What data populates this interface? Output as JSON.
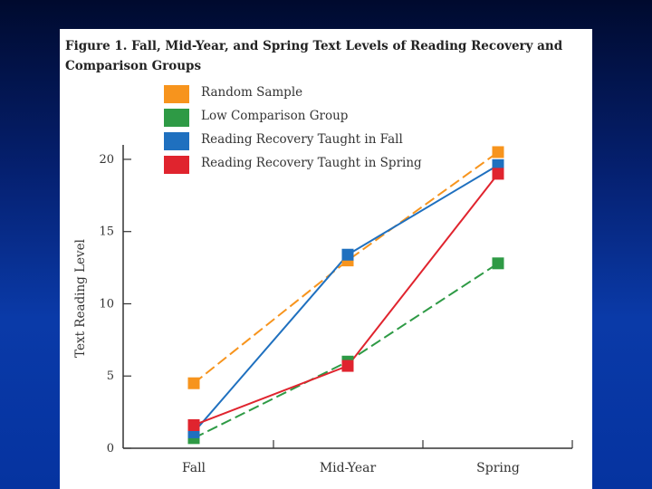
{
  "figure": {
    "title_line1": "Figure 1.  Fall, Mid-Year, and Spring Text Levels of Reading Recovery and",
    "title_line2": "Comparison Groups"
  },
  "legend": [
    {
      "label": "Random Sample",
      "color": "#f7941d"
    },
    {
      "label": "Low Comparison Group",
      "color": "#2e9a45"
    },
    {
      "label": "Reading Recovery Taught in Fall",
      "color": "#1f70bf"
    },
    {
      "label": "Reading Recovery Taught in Spring",
      "color": "#e0242e"
    }
  ],
  "chart_data": {
    "type": "line",
    "title": "Fall, Mid-Year, and Spring Text Levels of Reading Recovery and Comparison Groups",
    "categories": [
      "Fall",
      "Mid-Year",
      "Spring"
    ],
    "ylabel": "Text Reading Level",
    "xlabel": "",
    "ylim": [
      0,
      21
    ],
    "yticks": [
      0,
      5,
      10,
      15,
      20
    ],
    "grid": false,
    "series": [
      {
        "name": "Random Sample",
        "color": "#f7941d",
        "dash": true,
        "values": [
          4.5,
          13.0,
          20.5
        ]
      },
      {
        "name": "Low Comparison Group",
        "color": "#2e9a45",
        "dash": true,
        "values": [
          0.7,
          6.0,
          12.8
        ]
      },
      {
        "name": "Reading Recovery Taught in Fall",
        "color": "#1f70bf",
        "dash": false,
        "values": [
          1.1,
          13.4,
          19.6
        ]
      },
      {
        "name": "Reading Recovery Taught in Spring",
        "color": "#e0242e",
        "dash": false,
        "values": [
          1.6,
          5.7,
          19.0
        ]
      }
    ]
  }
}
